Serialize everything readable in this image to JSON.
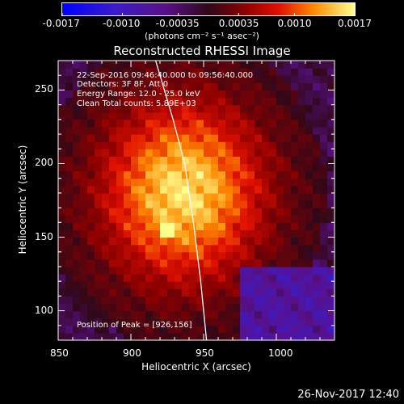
{
  "colorbar": {
    "ticks": [
      "-0.0017",
      "-0.0010",
      "-0.00035",
      "0.00035",
      "0.0010",
      "0.0017"
    ],
    "tick_values": [
      -0.0017,
      -0.001,
      -0.00035,
      0.00035,
      0.001,
      0.0017
    ],
    "range": [
      -0.0017,
      0.0017
    ],
    "units": "(photons cm⁻² s⁻¹ asec⁻²)"
  },
  "chart_data": {
    "type": "heatmap",
    "title": "Reconstructed RHESSI Image",
    "xlabel": "Heliocentric X (arcsec)",
    "ylabel": "Heliocentric Y (arcsec)",
    "xlim": [
      850,
      1040
    ],
    "ylim": [
      80,
      270
    ],
    "xticks": [
      850,
      900,
      950,
      1000
    ],
    "yticks": [
      100,
      150,
      200,
      250
    ],
    "peak": [
      926,
      156
    ],
    "limb_curve": [
      [
        917,
        270
      ],
      [
        929,
        230
      ],
      [
        937,
        200
      ],
      [
        943,
        160
      ],
      [
        948,
        120
      ],
      [
        952,
        80
      ]
    ],
    "annotations": {
      "time_range": "22-Sep-2016 09:46:40.000 to 09:56:40.000",
      "detectors": "Detectors: 3F 8F, Att 0",
      "energy": "Energy Range: 12.0 - 25.0 keV",
      "method": "Clean     Total counts: 5.89E+03",
      "peak": "Position of Peak = [926,156]"
    }
  },
  "footer": {
    "date": "26-Nov-2017 12:40"
  },
  "colors": {
    "limb": "#ffffff",
    "background": "#000000"
  }
}
